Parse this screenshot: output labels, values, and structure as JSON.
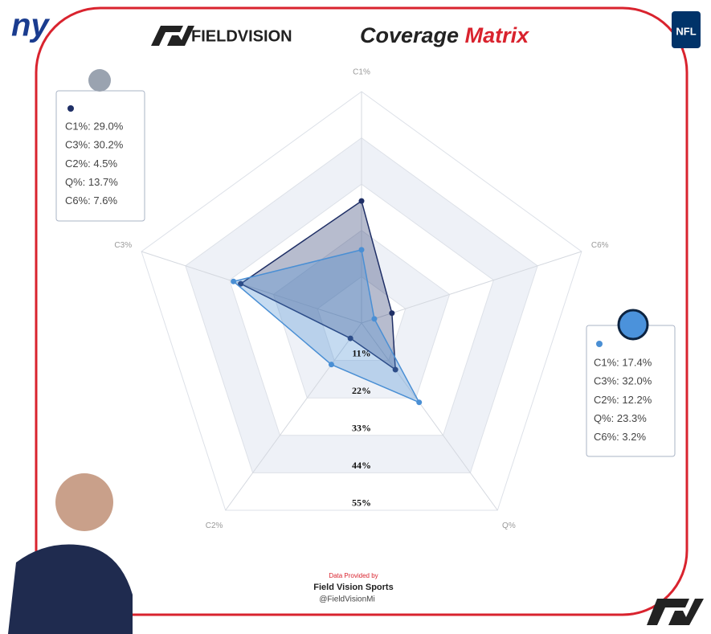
{
  "brand": "FIELDVISION",
  "logos": {
    "left": "ny",
    "right": "NFL"
  },
  "credits": {
    "provided": "Data Provided by",
    "company": "Field Vision Sports",
    "handle": "@FieldVisionMi"
  },
  "chart_data": {
    "type": "radar",
    "title": "Coverage",
    "title_accent": "Matrix",
    "categories": [
      "C1%",
      "C3%",
      "C2%",
      "Q%",
      "C6%"
    ],
    "rlim": [
      0,
      55
    ],
    "rticks": [
      {
        "value": 11,
        "label": "11%"
      },
      {
        "value": 22,
        "label": "22%"
      },
      {
        "value": 33,
        "label": "33%"
      },
      {
        "value": 44,
        "label": "44%"
      },
      {
        "value": 55,
        "label": "55%"
      }
    ],
    "series": [
      {
        "color": "#1f2f66",
        "values": [
          29.0,
          30.2,
          4.5,
          13.7,
          7.6
        ],
        "value_labels": [
          "C1%: 29.0%",
          "C3%: 30.2%",
          "C2%: 4.5%",
          "Q%: 13.7%",
          "C6%: 7.6%"
        ]
      },
      {
        "color": "#4a8fd4",
        "values": [
          17.4,
          32.0,
          12.2,
          23.3,
          3.2
        ],
        "value_labels": [
          "C1%: 17.4%",
          "C3%: 32.0%",
          "C2%: 12.2%",
          "Q%: 23.3%",
          "C6%: 3.2%"
        ]
      }
    ]
  }
}
